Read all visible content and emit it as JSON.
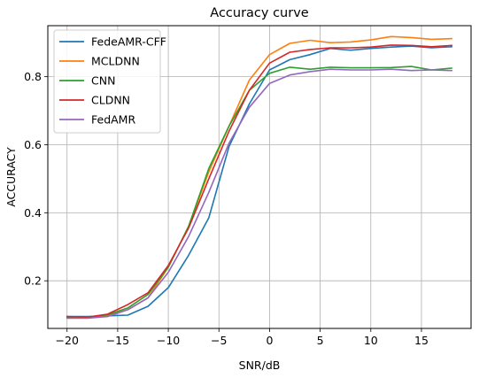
{
  "chart_data": {
    "type": "line",
    "title": "Accuracy curve",
    "xlabel": "SNR/dB",
    "ylabel": "ACCURACY",
    "xlim": [
      -21.9,
      19.9
    ],
    "ylim": [
      0.06,
      0.95
    ],
    "xticks": [
      -20,
      -15,
      -10,
      -5,
      0,
      5,
      10,
      15
    ],
    "yticks": [
      0.2,
      0.4,
      0.6,
      0.8
    ],
    "grid": true,
    "legend_position": "top-left",
    "x": [
      -20,
      -18,
      -16,
      -14,
      -12,
      -10,
      -8,
      -6,
      -4,
      -2,
      0,
      2,
      4,
      6,
      8,
      10,
      12,
      14,
      16,
      18
    ],
    "series": [
      {
        "name": "FedeAMR-CFF",
        "color": "#1f77b4",
        "values": [
          0.095,
          0.095,
          0.097,
          0.099,
          0.125,
          0.18,
          0.275,
          0.385,
          0.595,
          0.72,
          0.82,
          0.85,
          0.865,
          0.883,
          0.878,
          0.883,
          0.887,
          0.89,
          0.885,
          0.888
        ]
      },
      {
        "name": "MCLDNN",
        "color": "#ff7f0e",
        "values": [
          0.092,
          0.093,
          0.098,
          0.115,
          0.15,
          0.24,
          0.36,
          0.52,
          0.655,
          0.79,
          0.865,
          0.898,
          0.907,
          0.9,
          0.902,
          0.908,
          0.918,
          0.915,
          0.91,
          0.912
        ]
      },
      {
        "name": "CNN",
        "color": "#2ca02c",
        "values": [
          0.092,
          0.093,
          0.1,
          0.12,
          0.16,
          0.24,
          0.36,
          0.53,
          0.655,
          0.76,
          0.81,
          0.828,
          0.822,
          0.828,
          0.826,
          0.826,
          0.827,
          0.83,
          0.82,
          0.825
        ]
      },
      {
        "name": "CLDNN",
        "color": "#d62728",
        "values": [
          0.095,
          0.093,
          0.102,
          0.13,
          0.165,
          0.245,
          0.355,
          0.5,
          0.64,
          0.76,
          0.84,
          0.872,
          0.88,
          0.885,
          0.885,
          0.887,
          0.893,
          0.892,
          0.888,
          0.892
        ]
      },
      {
        "name": "FedAMR",
        "color": "#9467bd",
        "values": [
          0.09,
          0.09,
          0.095,
          0.115,
          0.15,
          0.225,
          0.33,
          0.46,
          0.605,
          0.71,
          0.78,
          0.805,
          0.815,
          0.822,
          0.82,
          0.82,
          0.822,
          0.818,
          0.82,
          0.818
        ]
      }
    ]
  }
}
